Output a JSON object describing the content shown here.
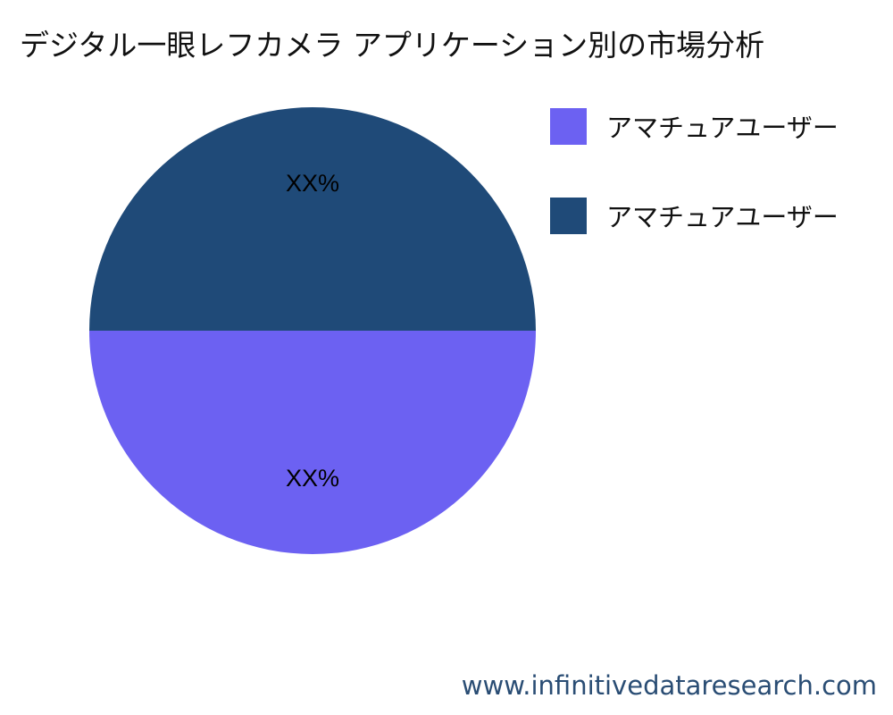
{
  "chart_data": {
    "type": "pie",
    "title": "デジタル一眼レフカメラ アプリケーション別の市場分析",
    "slices": [
      {
        "label": "アマチュアユーザー",
        "value": 50,
        "data_label": "XX%",
        "color": "#6c61f2"
      },
      {
        "label": "アマチュアユーザー",
        "value": 50,
        "data_label": "XX%",
        "color": "#1f4a78"
      }
    ],
    "legend_placement": "top-right"
  },
  "footer": {
    "text": "www.infinitivedataresearch.com"
  }
}
